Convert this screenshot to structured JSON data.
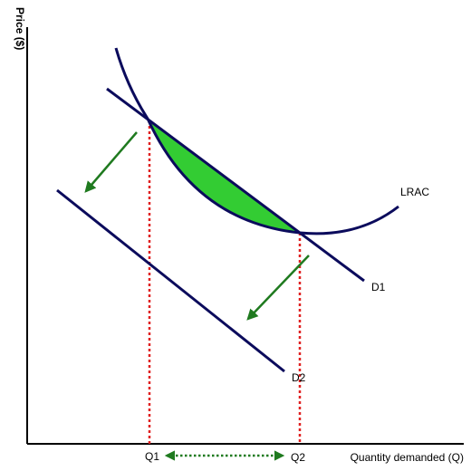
{
  "diagram": {
    "y_axis_label": "Price ($)",
    "x_axis_label": "Quantity demanded (Q)",
    "curves": {
      "lrac": "LRAC",
      "d1": "D1",
      "d2": "D2"
    },
    "quantities": {
      "q1": "Q1",
      "q2": "Q2"
    },
    "colors": {
      "curve": "#0b0b5c",
      "shaded_area": "#33cc33",
      "arrow": "#1f7a1f",
      "dotted_guides": "#e02020",
      "axis": "#000000"
    }
  }
}
